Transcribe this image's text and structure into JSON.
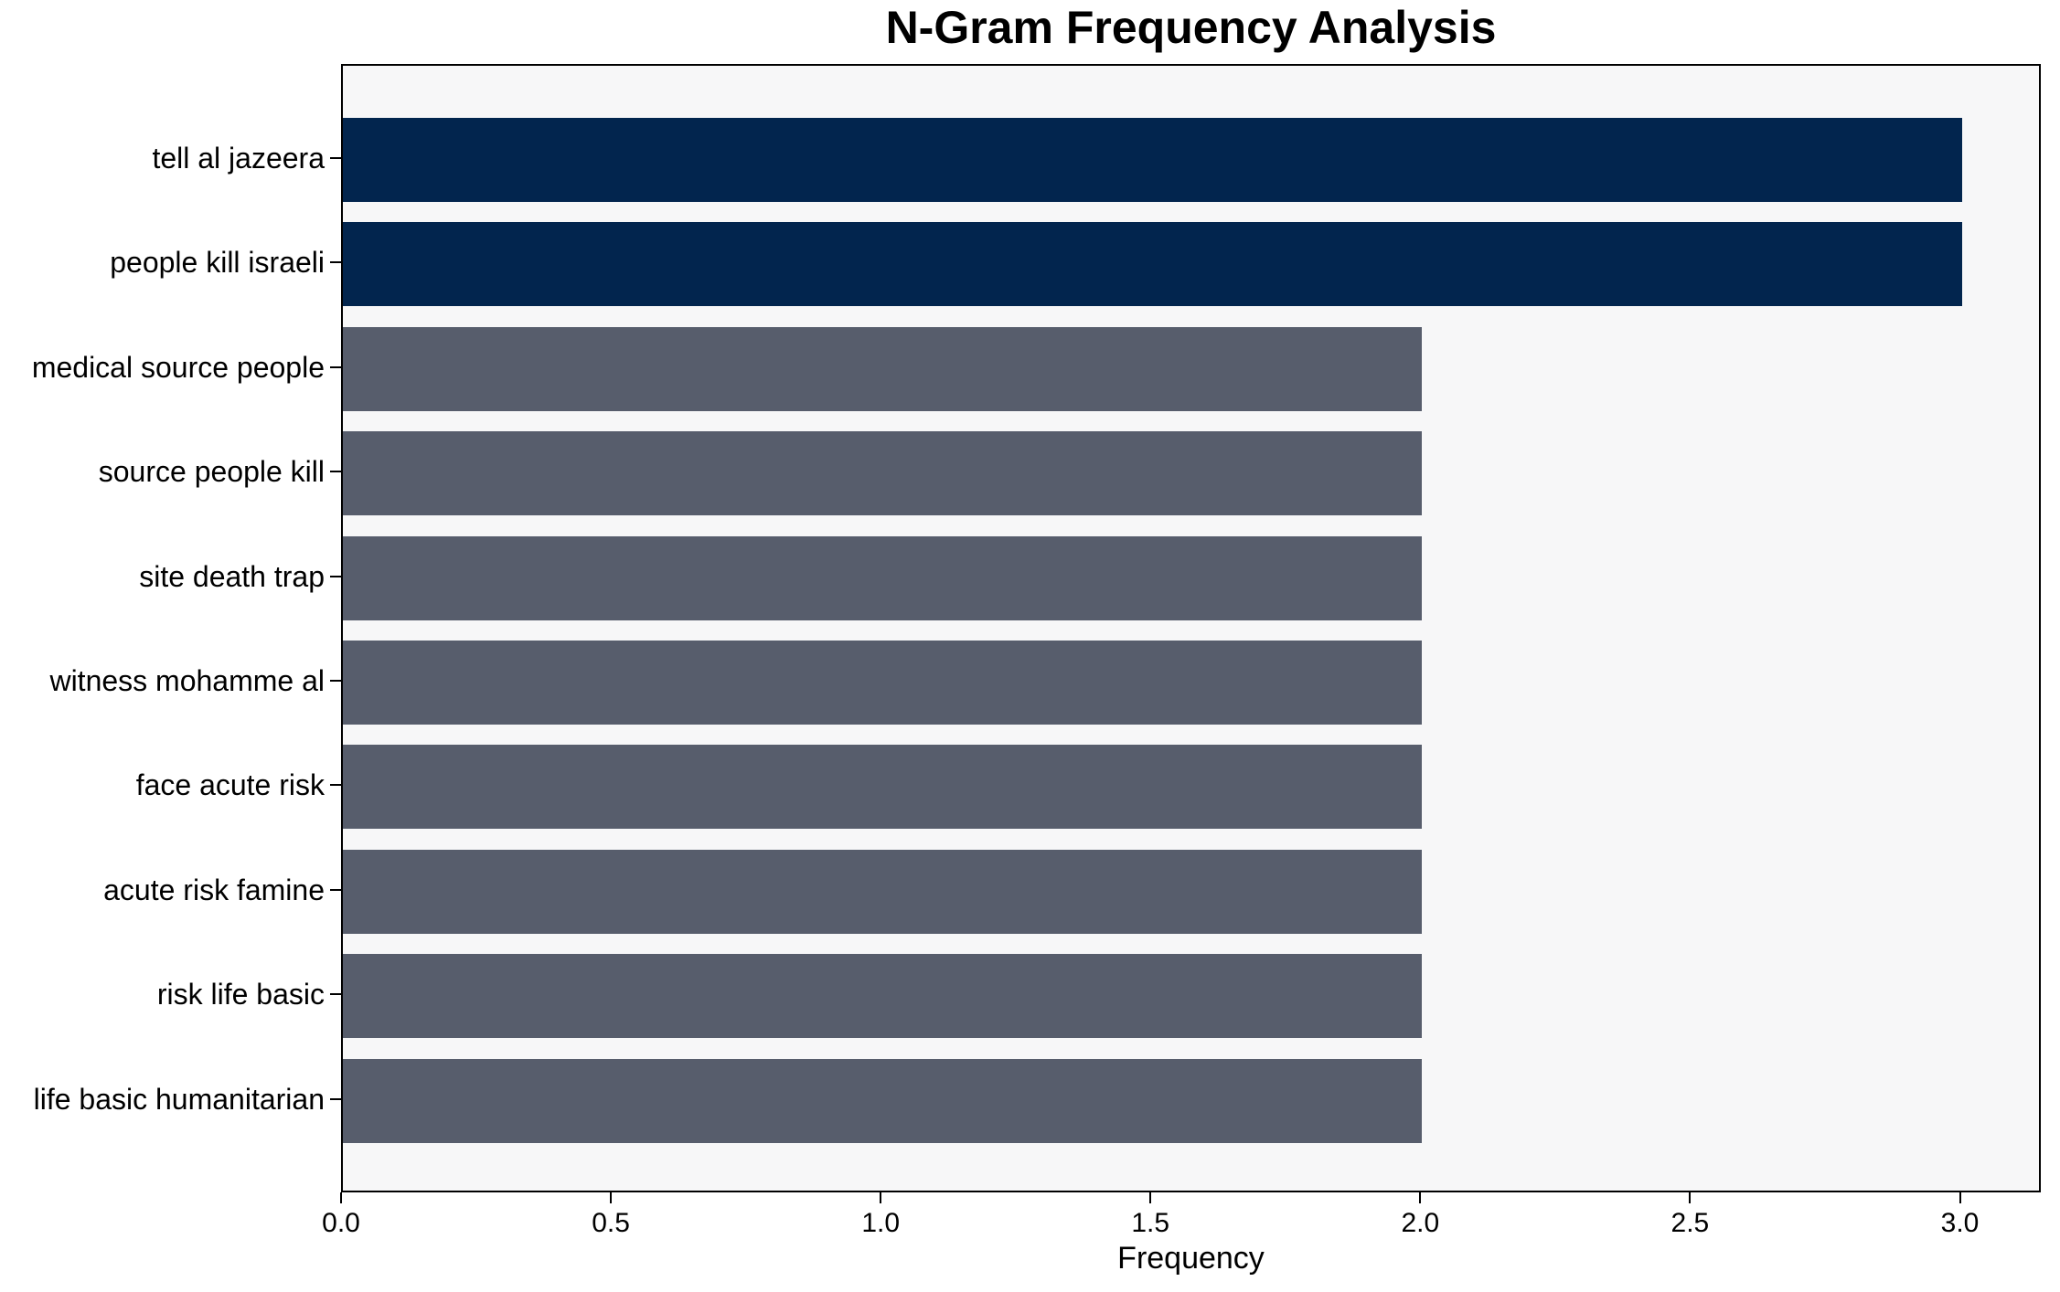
{
  "chart_data": {
    "type": "bar",
    "orientation": "horizontal",
    "title": "N-Gram Frequency Analysis",
    "xlabel": "Frequency",
    "ylabel": "",
    "categories": [
      "tell al jazeera",
      "people kill israeli",
      "medical source people",
      "source people kill",
      "site death trap",
      "witness mohamme al",
      "face acute risk",
      "acute risk famine",
      "risk life basic",
      "life basic humanitarian"
    ],
    "values": [
      3,
      3,
      2,
      2,
      2,
      2,
      2,
      2,
      2,
      2
    ],
    "xlim": [
      0,
      3.15
    ],
    "xticks": [
      0,
      0.5,
      1,
      1.5,
      2,
      2.5,
      3
    ],
    "xtick_labels": [
      "0.0",
      "0.5",
      "1.0",
      "1.5",
      "2.0",
      "2.5",
      "3.0"
    ],
    "grid": false,
    "legend": "none",
    "colors": {
      "max_value_bar": "#02254e",
      "other_bars": "#575d6c",
      "plot_background": "#f7f7f8",
      "figure_background": "#ffffff",
      "axis": "#000000",
      "text": "#000000"
    }
  }
}
